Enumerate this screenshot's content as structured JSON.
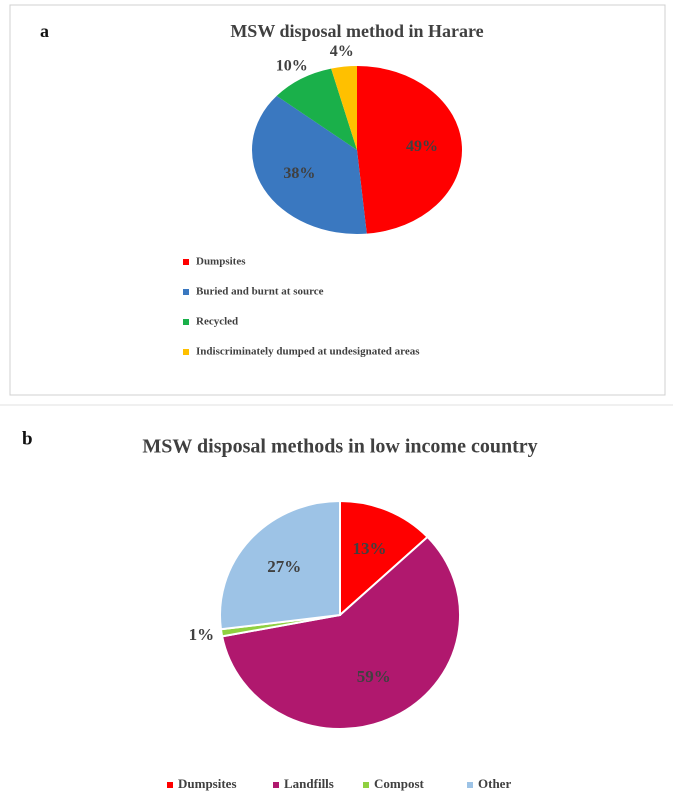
{
  "chart_data": [
    {
      "type": "pie",
      "label": "a",
      "title": "MSW disposal method in Harare",
      "categories": [
        "Dumpsites",
        "Buried and burnt at source",
        "Recycled",
        "Indiscriminately dumped at undesignated areas"
      ],
      "values": [
        49,
        38,
        10,
        4
      ],
      "value_labels": [
        "49%",
        "38%",
        "10%",
        "4%"
      ],
      "colors": [
        "#ff0000",
        "#3a78c0",
        "#1ab04a",
        "#ffc000"
      ],
      "legend": "bottom"
    },
    {
      "type": "pie",
      "label": "b",
      "title": "MSW disposal methods in low income country",
      "categories": [
        "Dumpsites",
        "Landfills",
        "Compost",
        "Other"
      ],
      "values": [
        13,
        59,
        1,
        27
      ],
      "value_labels": [
        "13%",
        "59%",
        "1%",
        "27%"
      ],
      "colors": [
        "#ff0000",
        "#b0186e",
        "#8fd040",
        "#9dc3e6"
      ],
      "legend": "bottom"
    }
  ]
}
